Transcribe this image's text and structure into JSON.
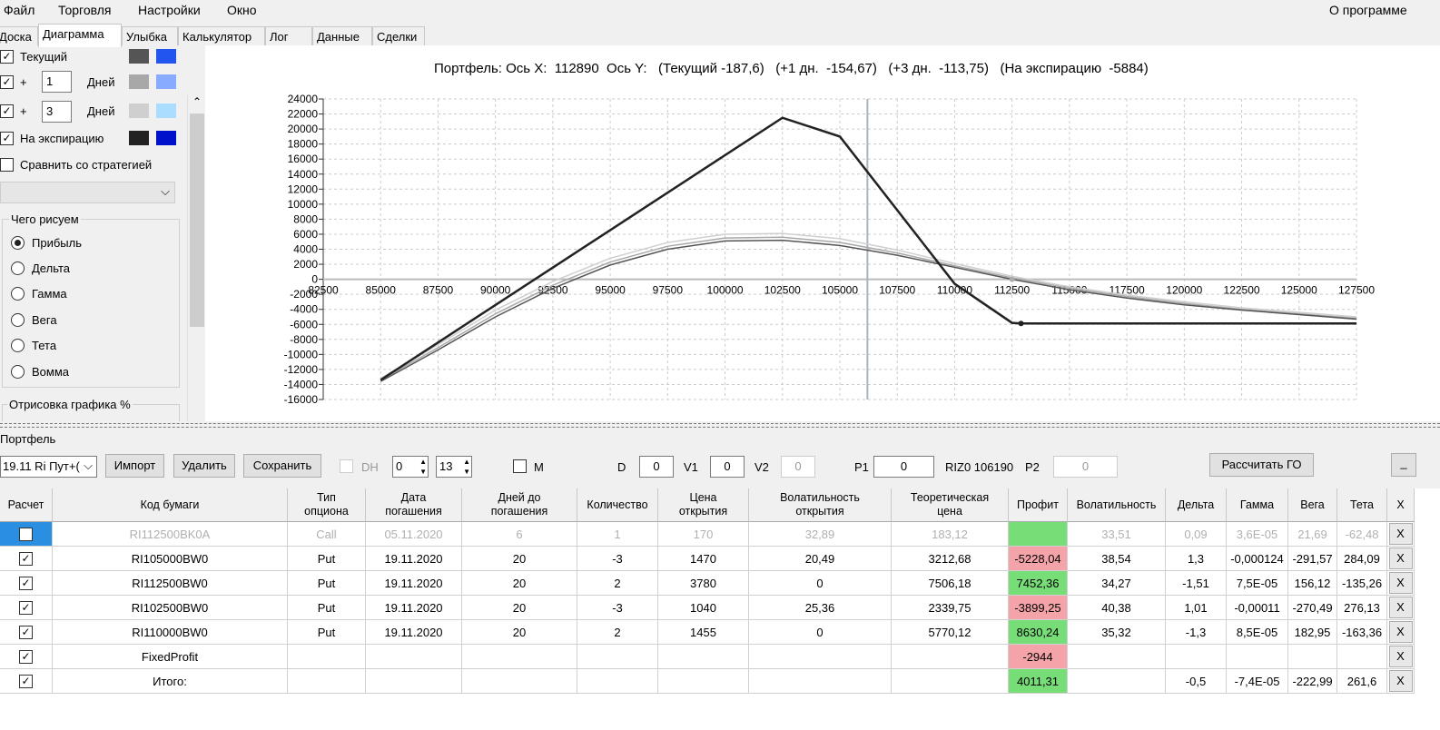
{
  "menu": {
    "file": "Файл",
    "trade": "Торговля",
    "settings": "Настройки",
    "window": "Окно",
    "about": "О программе"
  },
  "tabs": [
    "Доска",
    "Диаграмма",
    "Улыбка",
    "Калькулятор",
    "Лог",
    "Данные",
    "Сделки"
  ],
  "left_panel": {
    "current_label": "Текущий",
    "plus": "+",
    "days_label": "Дней",
    "days1": "1",
    "days3": "3",
    "expiry_label": "На экспирацию",
    "compare_label": "Сравнить со стратегией",
    "draw_group": "Чего рисуем",
    "draw_options": [
      "Прибыль",
      "Дельта",
      "Гамма",
      "Вега",
      "Тета",
      "Вомма"
    ],
    "plot_group": "Отрисовка графика %",
    "colors": {
      "current_a": "#555555",
      "current_b": "#2255ee",
      "d1_a": "#a8a8a8",
      "d1_b": "#88aaff",
      "d3_a": "#cfcfcf",
      "d3_b": "#aaddff",
      "exp_a": "#222222",
      "exp_b": "#0011cc"
    }
  },
  "chart": {
    "title": "Портфель: Ось X:  112890  Ось Y:   (Текущий -187,6)   (+1 дн.  -154,67)   (+3 дн.  -113,75)   (На экспирацию  -5884)"
  },
  "chart_data": {
    "type": "line",
    "title": "Портфель: Ось X:  112890  Ось Y:   (Текущий -187,6)   (+1 дн.  -154,67)   (+3 дн.  -113,75)   (На экспирацию  -5884)",
    "xlim": [
      82500,
      127500
    ],
    "ylim": [
      -16000,
      24000
    ],
    "xticks": [
      82500,
      85000,
      87500,
      90000,
      92500,
      95000,
      97500,
      100000,
      102500,
      105000,
      107500,
      110000,
      112500,
      115000,
      117500,
      120000,
      122500,
      125000,
      127500
    ],
    "yticks": [
      24000,
      22000,
      20000,
      18000,
      16000,
      14000,
      12000,
      10000,
      8000,
      6000,
      4000,
      2000,
      0,
      -2000,
      -4000,
      -6000,
      -8000,
      -10000,
      -12000,
      -14000,
      -16000
    ],
    "grid": true,
    "cursor_x": 106200,
    "series": [
      {
        "color": "#222222",
        "points": [
          [
            85000,
            -13400
          ],
          [
            102500,
            21500
          ],
          [
            105000,
            19000
          ],
          [
            110000,
            -600
          ],
          [
            112500,
            -5800
          ],
          [
            112890,
            -5884
          ],
          [
            127500,
            -5884
          ]
        ]
      },
      {
        "color": "#555555",
        "points": [
          [
            85000,
            -13600
          ],
          [
            87500,
            -9400
          ],
          [
            90000,
            -5000
          ],
          [
            92500,
            -1200
          ],
          [
            95000,
            1900
          ],
          [
            97500,
            4000
          ],
          [
            100000,
            5100
          ],
          [
            102500,
            5200
          ],
          [
            105000,
            4500
          ],
          [
            107500,
            3200
          ],
          [
            110000,
            1600
          ],
          [
            112500,
            0
          ],
          [
            115000,
            -1400
          ],
          [
            117500,
            -2500
          ],
          [
            120000,
            -3400
          ],
          [
            122500,
            -4100
          ],
          [
            125000,
            -4700
          ],
          [
            127500,
            -5300
          ]
        ]
      },
      {
        "color": "#a8a8a8",
        "points": [
          [
            85000,
            -13400
          ],
          [
            87500,
            -9100
          ],
          [
            90000,
            -4600
          ],
          [
            92500,
            -800
          ],
          [
            95000,
            2300
          ],
          [
            97500,
            4400
          ],
          [
            100000,
            5500
          ],
          [
            102500,
            5600
          ],
          [
            105000,
            4900
          ],
          [
            107500,
            3500
          ],
          [
            110000,
            1800
          ],
          [
            112500,
            200
          ],
          [
            115000,
            -1200
          ],
          [
            117500,
            -2300
          ],
          [
            120000,
            -3200
          ],
          [
            122500,
            -4000
          ],
          [
            125000,
            -4600
          ],
          [
            127500,
            -5200
          ]
        ]
      },
      {
        "color": "#cfcfcf",
        "points": [
          [
            85000,
            -13200
          ],
          [
            87500,
            -8700
          ],
          [
            90000,
            -4100
          ],
          [
            92500,
            -300
          ],
          [
            95000,
            2800
          ],
          [
            97500,
            4900
          ],
          [
            100000,
            6000
          ],
          [
            102500,
            6100
          ],
          [
            105000,
            5400
          ],
          [
            107500,
            3900
          ],
          [
            110000,
            2100
          ],
          [
            112500,
            400
          ],
          [
            115000,
            -1000
          ],
          [
            117500,
            -2100
          ],
          [
            120000,
            -3000
          ],
          [
            122500,
            -3800
          ],
          [
            125000,
            -4400
          ],
          [
            127500,
            -5000
          ]
        ]
      }
    ]
  },
  "portfolio": {
    "label": "Портфель",
    "select_value": "19.11 Ri Пут+(",
    "import": "Импорт",
    "delete": "Удалить",
    "save": "Сохранить",
    "dh": "DH",
    "spin1": "0",
    "spin2": "13",
    "m": "M",
    "d_label": "D",
    "d_value": "0",
    "v1_label": "V1",
    "v1_value": "0",
    "v2_label": "V2",
    "v2_value": "0",
    "p1_label": "P1",
    "p1_value": "0",
    "riz": "RIZ0 106190",
    "p2_label": "P2",
    "p2_value": "0",
    "calc_go": "Рассчитать ГО",
    "minimize": "_"
  },
  "grid": {
    "headers": [
      "Расчет",
      "Код бумаги",
      "Тип\nопциона",
      "Дата\nпогашения",
      "Дней до\nпогашения",
      "Количество",
      "Цена\nоткрытия",
      "Волатильность\nоткрытия",
      "Теоретическая\nцена",
      "Профит",
      "Волатильность",
      "Дельта",
      "Гамма",
      "Вега",
      "Тета",
      "X"
    ],
    "rows": [
      {
        "checked": false,
        "dim": true,
        "cells": [
          "RI112500BK0A",
          "Call",
          "05.11.2020",
          "6",
          "1",
          "170",
          "32,89",
          "183,12",
          "",
          "33,51",
          "0,09",
          "3,6E-05",
          "21,69",
          "-62,48"
        ],
        "profit_color": "green"
      },
      {
        "checked": true,
        "dim": false,
        "cells": [
          "RI105000BW0",
          "Put",
          "19.11.2020",
          "20",
          "-3",
          "1470",
          "20,49",
          "3212,68",
          "-5228,04",
          "38,54",
          "1,3",
          "-0,000124",
          "-291,57",
          "284,09"
        ],
        "profit_color": "red"
      },
      {
        "checked": true,
        "dim": false,
        "cells": [
          "RI112500BW0",
          "Put",
          "19.11.2020",
          "20",
          "2",
          "3780",
          "0",
          "7506,18",
          "7452,36",
          "34,27",
          "-1,51",
          "7,5E-05",
          "156,12",
          "-135,26"
        ],
        "profit_color": "green"
      },
      {
        "checked": true,
        "dim": false,
        "cells": [
          "RI102500BW0",
          "Put",
          "19.11.2020",
          "20",
          "-3",
          "1040",
          "25,36",
          "2339,75",
          "-3899,25",
          "40,38",
          "1,01",
          "-0,00011",
          "-270,49",
          "276,13"
        ],
        "profit_color": "red"
      },
      {
        "checked": true,
        "dim": false,
        "cells": [
          "RI110000BW0",
          "Put",
          "19.11.2020",
          "20",
          "2",
          "1455",
          "0",
          "5770,12",
          "8630,24",
          "35,32",
          "-1,3",
          "8,5E-05",
          "182,95",
          "-163,36"
        ],
        "profit_color": "green"
      },
      {
        "checked": true,
        "dim": false,
        "cells": [
          "FixedProfit",
          "",
          "",
          "",
          "",
          "",
          "",
          "",
          "-2944",
          "",
          "",
          "",
          "",
          ""
        ],
        "profit_color": "red"
      },
      {
        "checked": true,
        "dim": false,
        "cells": [
          "Итого:",
          "",
          "",
          "",
          "",
          "",
          "",
          "",
          "4011,31",
          "",
          "-0,5",
          "-7,4E-05",
          "-222,99",
          "261,6"
        ],
        "profit_color": "green"
      }
    ],
    "x_label": "X",
    "colors": {
      "green": "#77dd77",
      "red": "#f4a4a9",
      "header": "#f0f0f0"
    }
  }
}
